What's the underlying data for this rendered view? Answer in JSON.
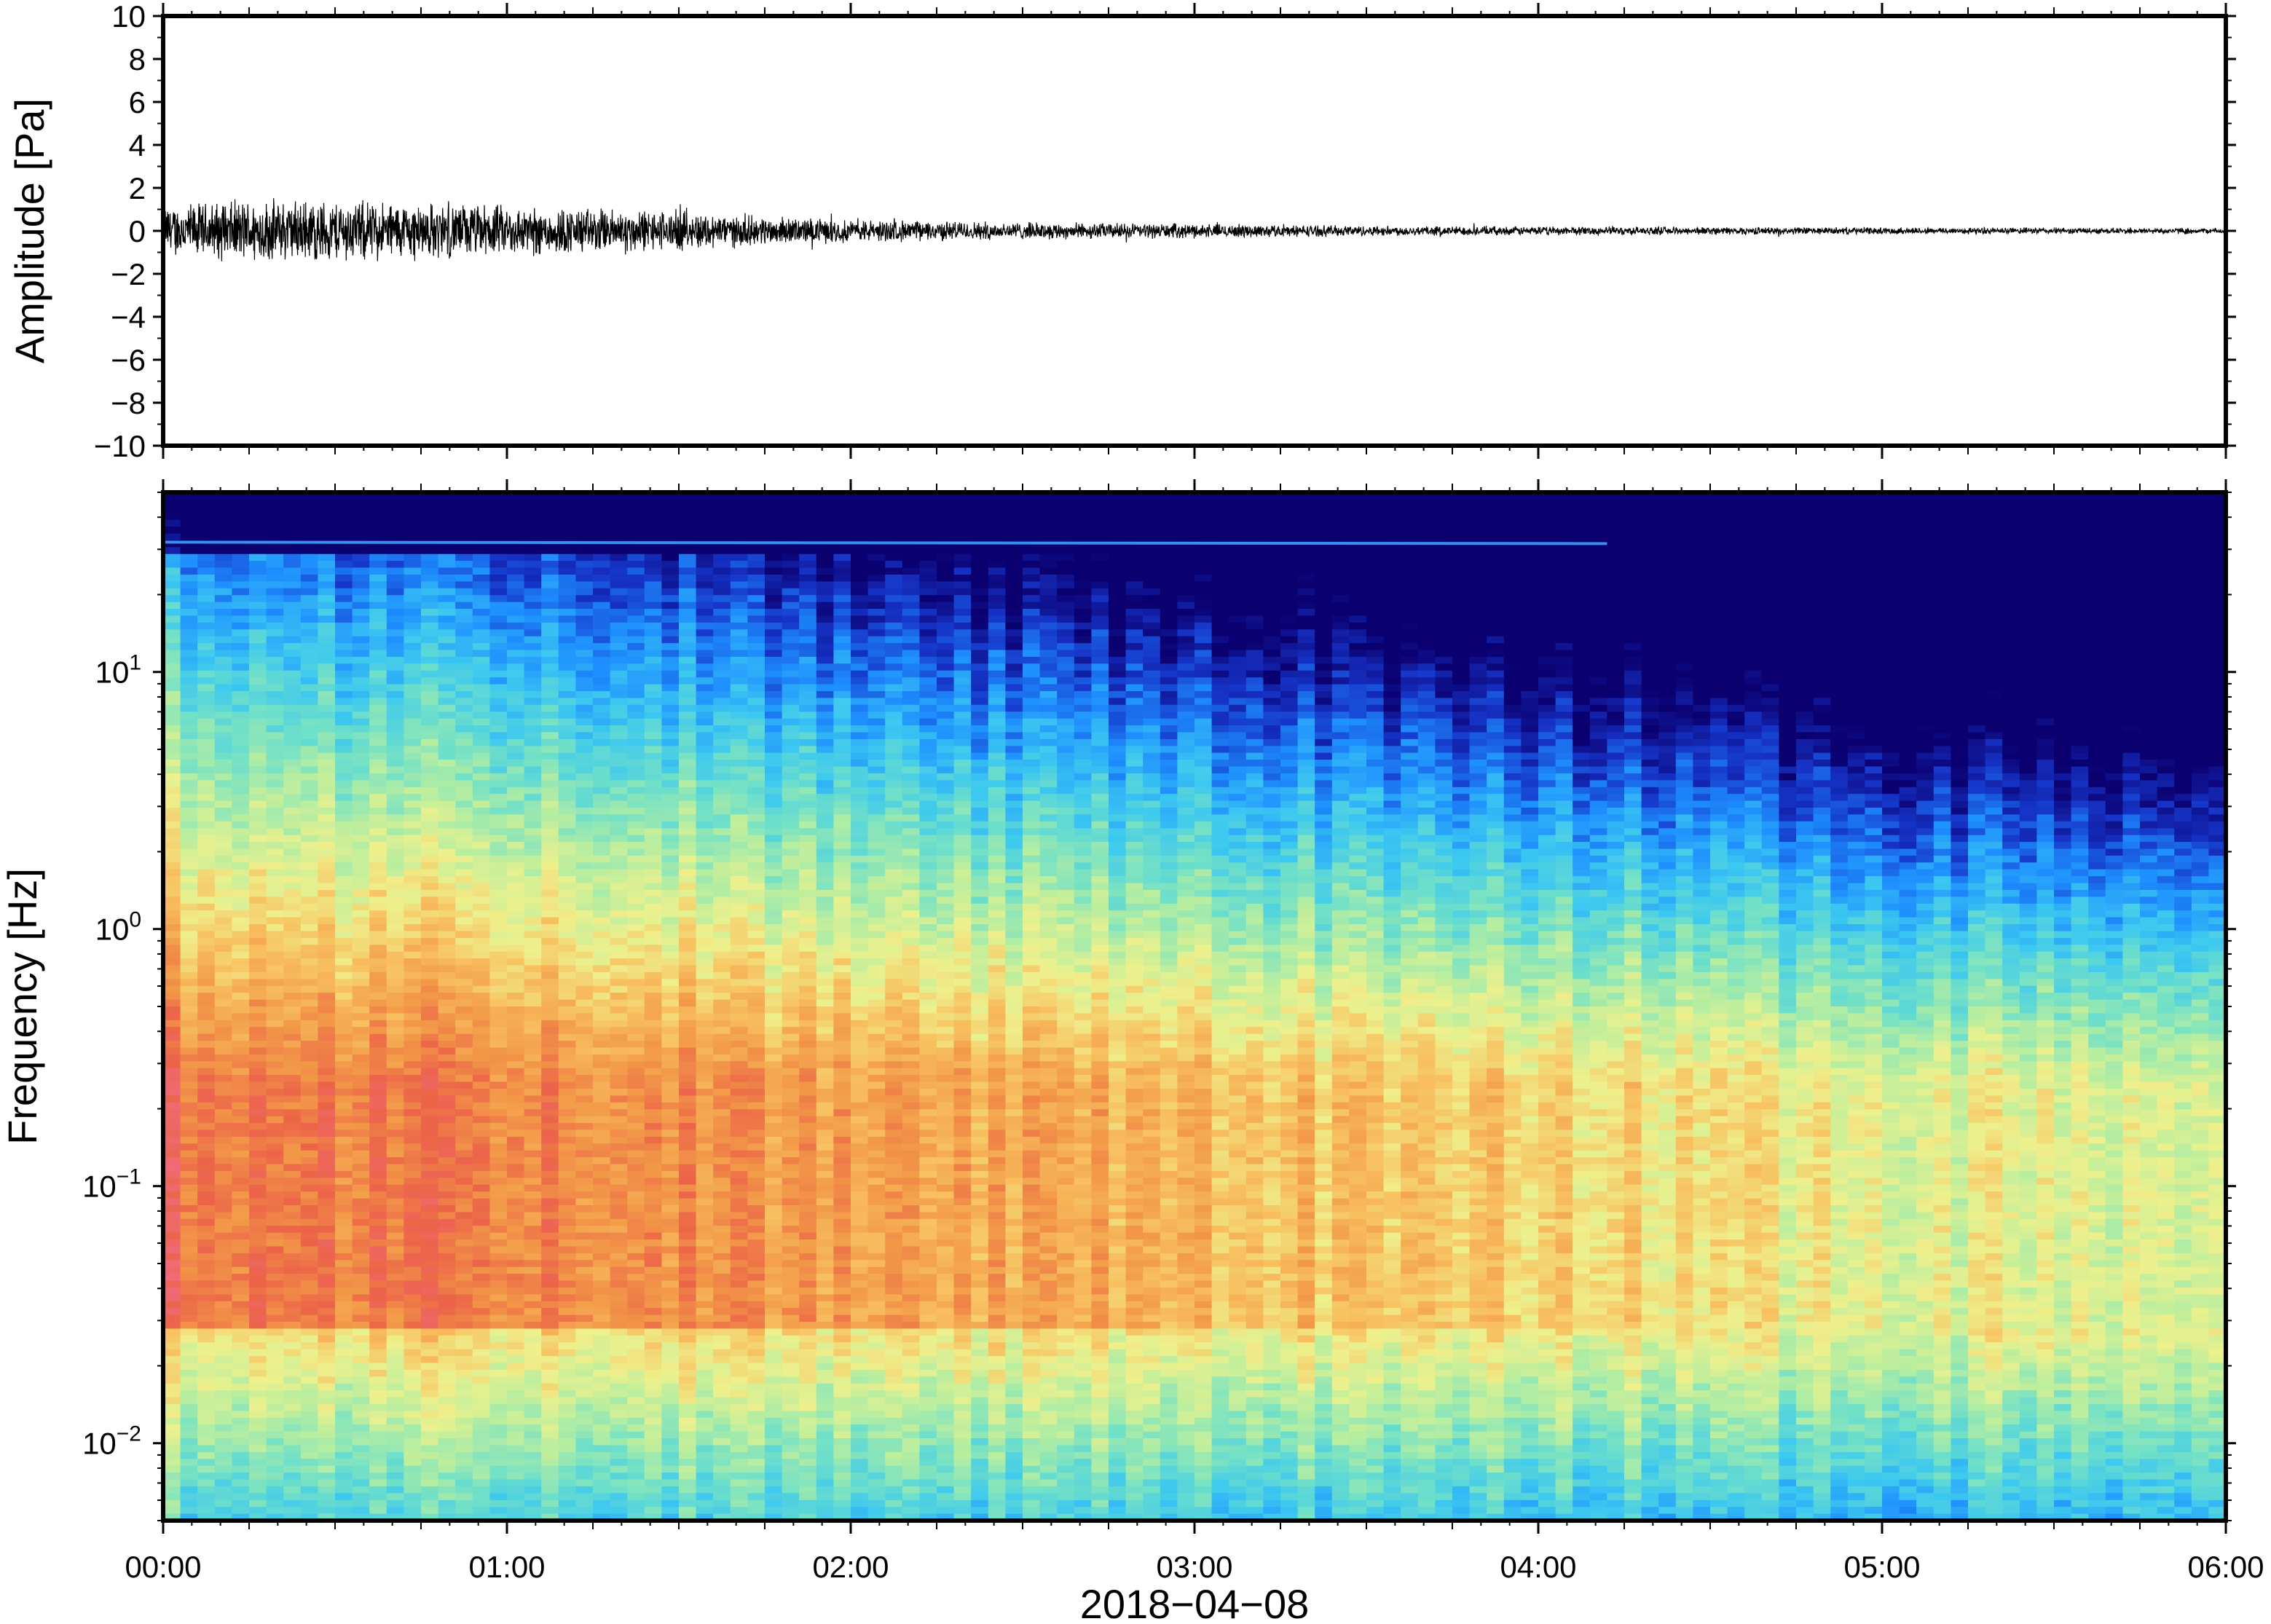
{
  "chart_data": [
    {
      "type": "line",
      "title": "",
      "xlabel": "",
      "ylabel": "Amplitude [Pa]",
      "ylim": [
        -10,
        10
      ],
      "y_ticks": [
        "10",
        "8",
        "6",
        "4",
        "2",
        "0",
        "−2",
        "−4",
        "−6",
        "−8",
        "−10"
      ],
      "series": [
        {
          "color": "#000000",
          "envelope_hours": [
            0,
            0.25,
            0.5,
            0.75,
            1.0,
            1.25,
            1.5,
            1.75,
            2.0,
            2.5,
            3.0,
            3.5,
            4.0,
            5.0,
            6.0
          ],
          "envelope_pa": [
            0.9,
            1.1,
            1.1,
            1.0,
            0.9,
            0.8,
            0.7,
            0.5,
            0.4,
            0.3,
            0.25,
            0.18,
            0.15,
            0.12,
            0.1
          ]
        }
      ]
    },
    {
      "type": "heatmap",
      "title": "",
      "ylabel": "Frequency [Hz]",
      "y_scale": "log",
      "ylim_hz": [
        0.005,
        50
      ],
      "y_ticks": [
        {
          "base": "10",
          "exp": "1",
          "value": 10
        },
        {
          "base": "10",
          "exp": "0",
          "value": 1
        },
        {
          "base": "10",
          "exp": "−1",
          "value": 0.1
        },
        {
          "base": "10",
          "exp": "−2",
          "value": 0.01
        }
      ],
      "colormap": [
        "#0b0070",
        "#1634c8",
        "#1e90ff",
        "#3cc8f0",
        "#70e0c8",
        "#b8eea0",
        "#eef08c",
        "#f8c060",
        "#f29848",
        "#ec6448",
        "#f06a78"
      ],
      "notable_line_hz": 32
    }
  ],
  "x_axis": {
    "date_label": "2018−04−08",
    "xlim_hours": [
      0,
      6
    ],
    "ticks": [
      "00:00",
      "01:00",
      "02:00",
      "03:00",
      "04:00",
      "05:00",
      "06:00"
    ]
  }
}
